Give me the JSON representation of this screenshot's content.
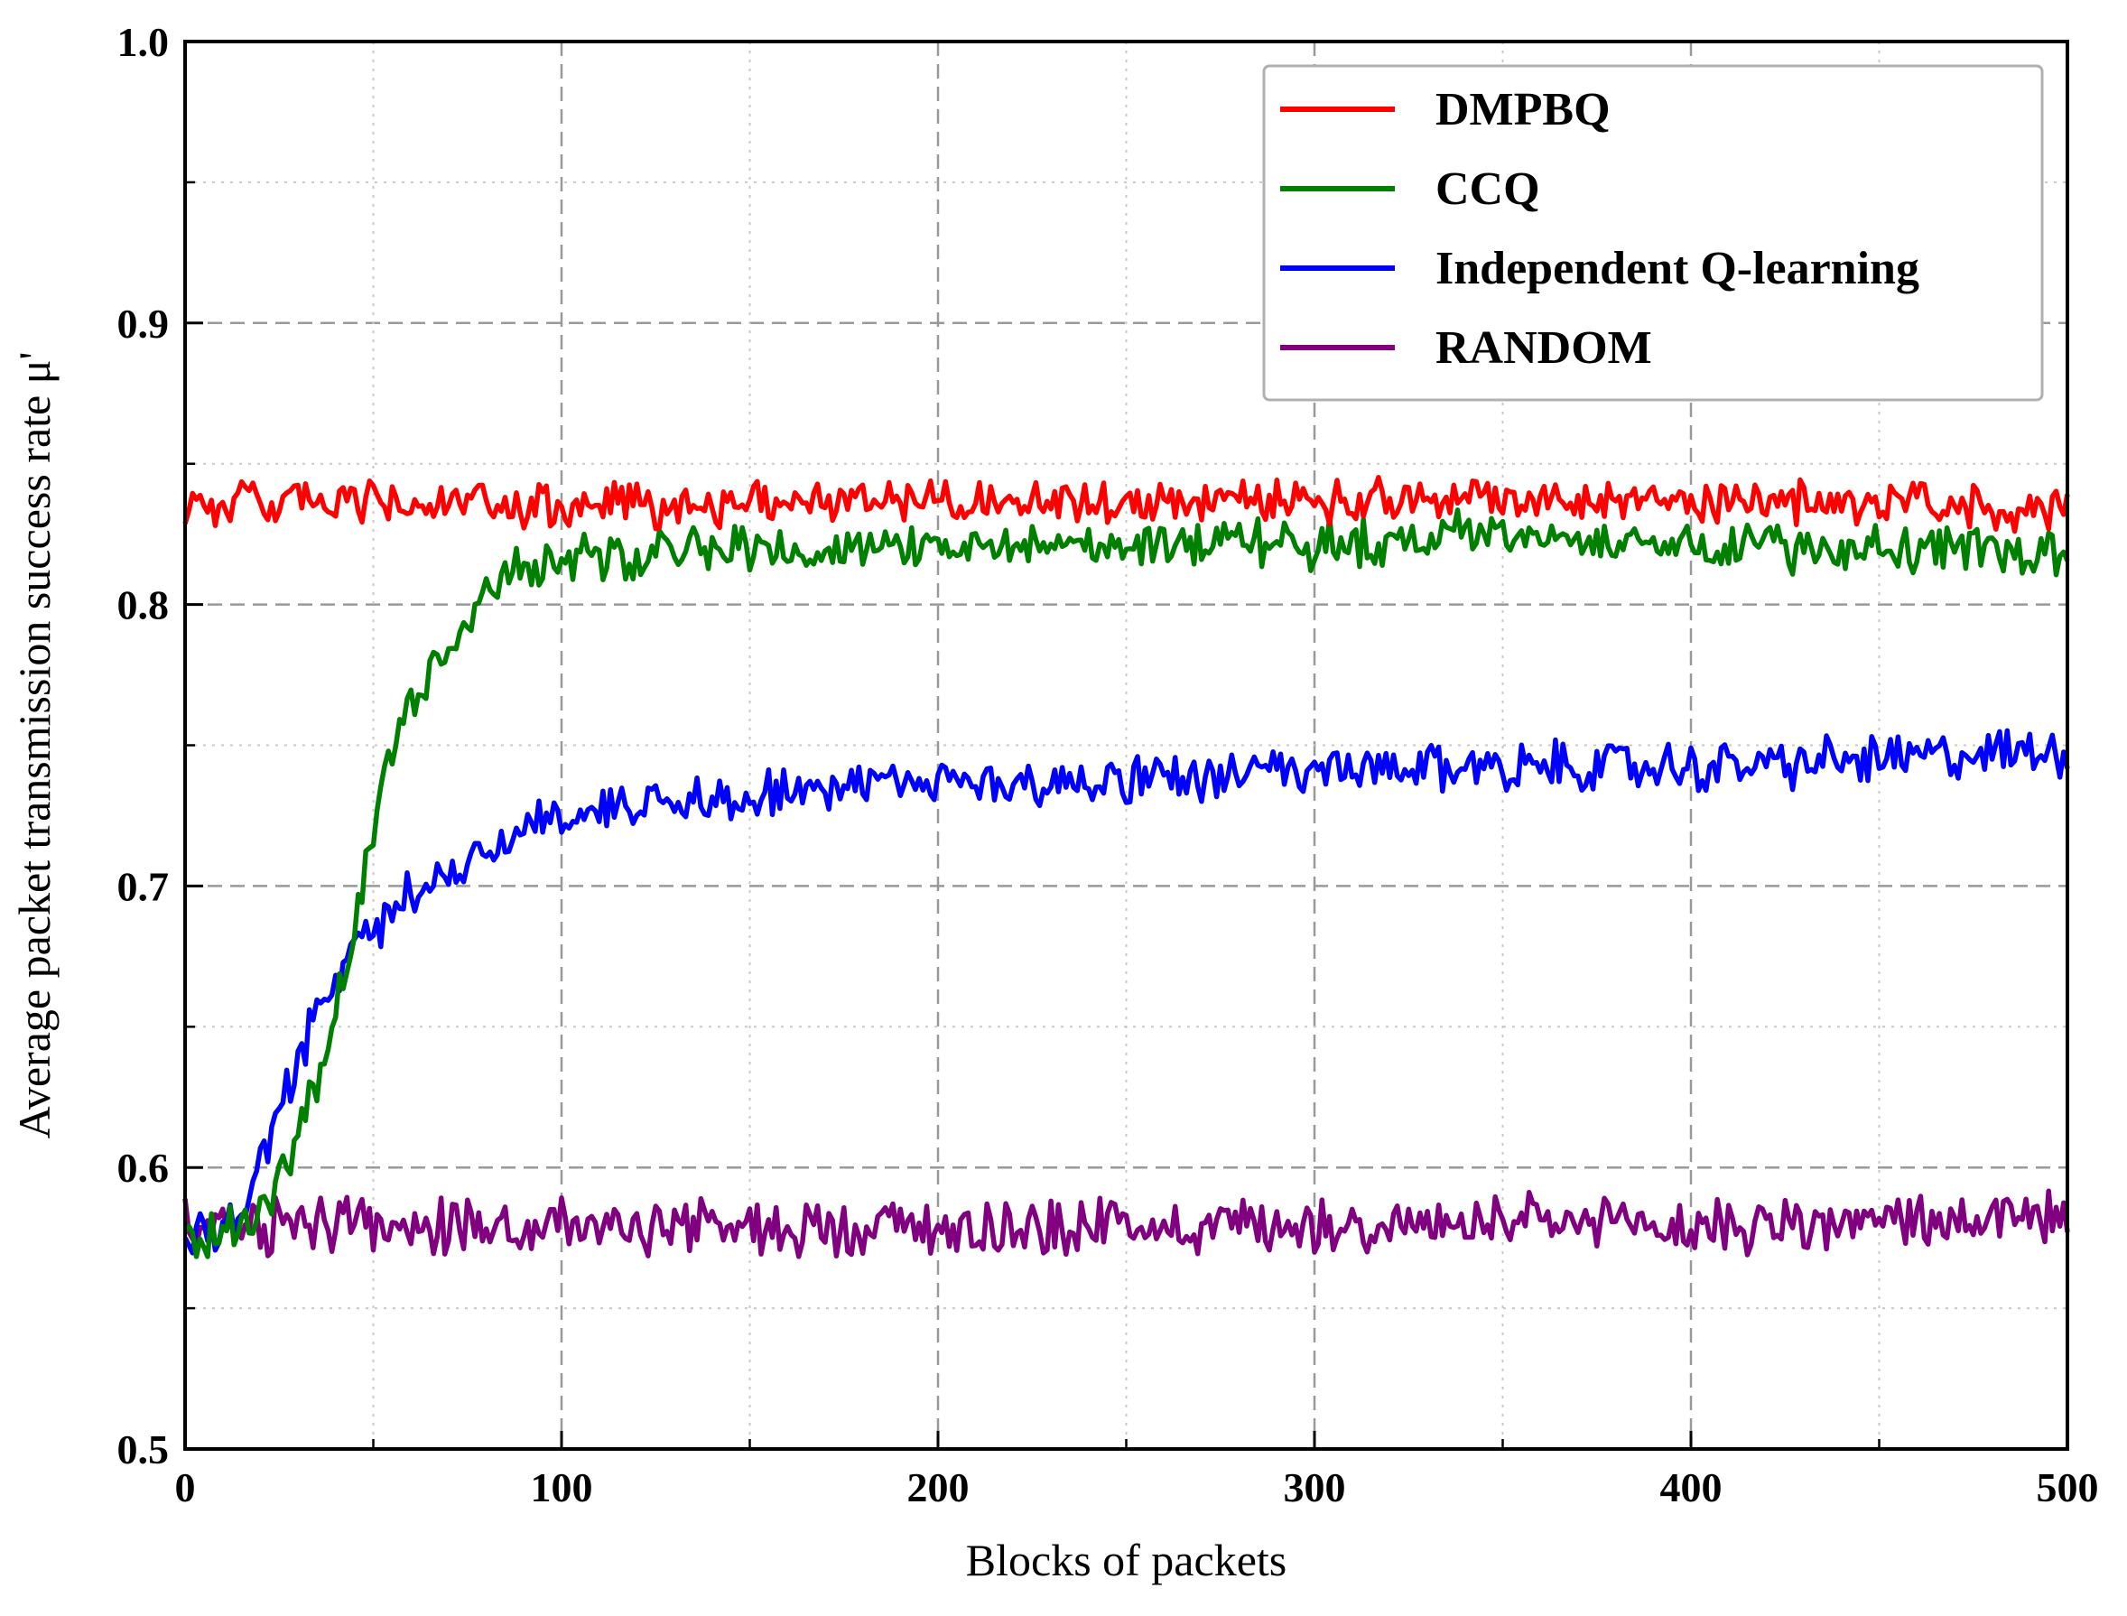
{
  "chart_data": {
    "type": "line",
    "title": "",
    "xlabel": "Blocks of packets",
    "ylabel": "Average packet transmission success rate μ'",
    "xlim": [
      0,
      500
    ],
    "ylim": [
      0.5,
      1.0
    ],
    "xticks": [
      0,
      100,
      200,
      300,
      400,
      500
    ],
    "xtick_labels": [
      "0",
      "100",
      "200",
      "300",
      "400",
      "500"
    ],
    "yticks": [
      0.5,
      0.6,
      0.7,
      0.8,
      0.9,
      1.0
    ],
    "ytick_labels": [
      "0.5",
      "0.6",
      "0.7",
      "0.8",
      "0.9",
      "1.0"
    ],
    "grid": true,
    "legend_position": "top-right",
    "series": [
      {
        "name": "DMPBQ",
        "color": "#ff0000",
        "x": [
          0,
          50,
          100,
          150,
          200,
          250,
          300,
          350,
          400,
          450,
          500
        ],
        "values": [
          0.836,
          0.836,
          0.834,
          0.836,
          0.838,
          0.836,
          0.837,
          0.838,
          0.837,
          0.836,
          0.834
        ],
        "noise": 0.006
      },
      {
        "name": "CCQ",
        "color": "#008000",
        "x": [
          0,
          5,
          10,
          15,
          20,
          25,
          30,
          35,
          40,
          45,
          50,
          55,
          60,
          65,
          70,
          75,
          80,
          85,
          90,
          95,
          100,
          120,
          140,
          160,
          180,
          200,
          250,
          300,
          350,
          400,
          450,
          500
        ],
        "values": [
          0.578,
          0.575,
          0.577,
          0.58,
          0.585,
          0.595,
          0.61,
          0.63,
          0.655,
          0.685,
          0.72,
          0.745,
          0.765,
          0.775,
          0.785,
          0.795,
          0.805,
          0.81,
          0.812,
          0.815,
          0.815,
          0.817,
          0.819,
          0.82,
          0.82,
          0.82,
          0.822,
          0.822,
          0.825,
          0.822,
          0.82,
          0.818
        ],
        "noise": 0.007
      },
      {
        "name": "Independent Q-learning",
        "color": "#0000ff",
        "x": [
          0,
          5,
          10,
          15,
          20,
          25,
          30,
          35,
          40,
          45,
          50,
          55,
          60,
          65,
          70,
          75,
          80,
          90,
          100,
          120,
          140,
          160,
          180,
          200,
          250,
          300,
          350,
          400,
          450,
          500
        ],
        "values": [
          0.575,
          0.575,
          0.578,
          0.585,
          0.6,
          0.62,
          0.64,
          0.655,
          0.665,
          0.675,
          0.685,
          0.692,
          0.698,
          0.703,
          0.707,
          0.71,
          0.714,
          0.72,
          0.725,
          0.73,
          0.732,
          0.734,
          0.735,
          0.736,
          0.738,
          0.74,
          0.743,
          0.742,
          0.745,
          0.748
        ],
        "noise": 0.007
      },
      {
        "name": "RANDOM",
        "color": "#800080",
        "x": [
          0,
          100,
          200,
          300,
          400,
          500
        ],
        "values": [
          0.58,
          0.579,
          0.579,
          0.58,
          0.579,
          0.582
        ],
        "noise": 0.008
      }
    ]
  }
}
